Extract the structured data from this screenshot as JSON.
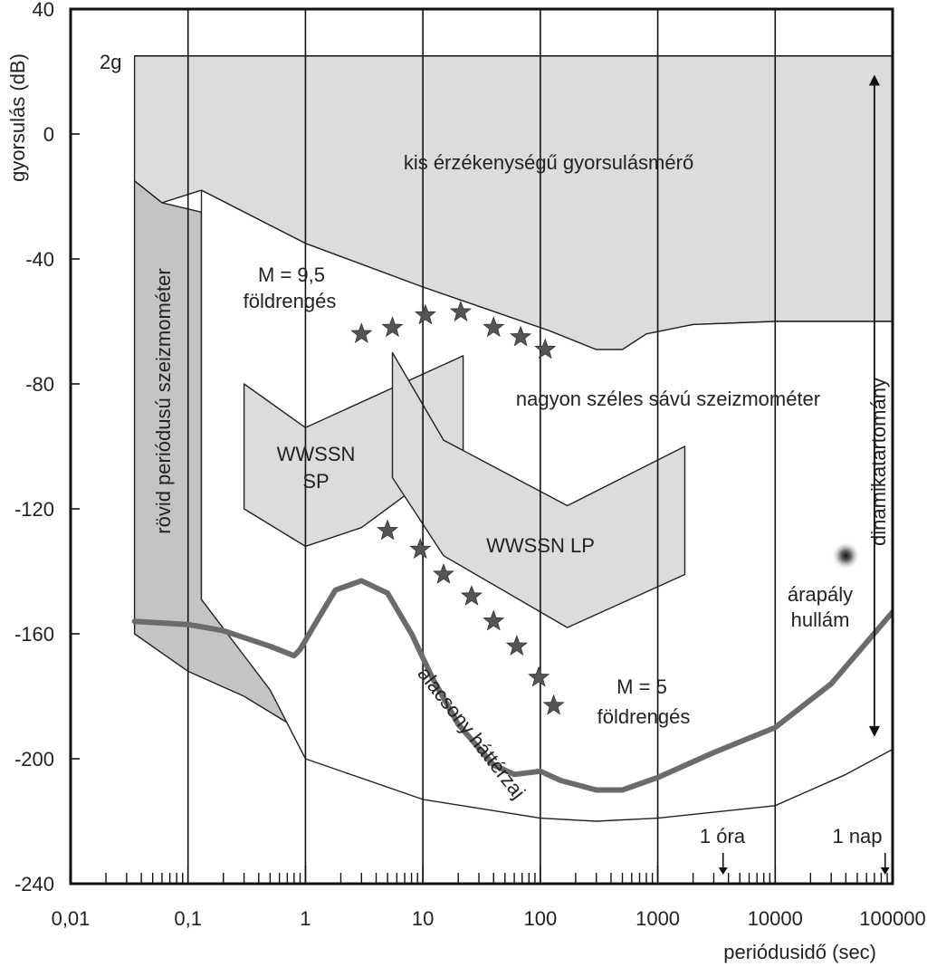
{
  "chart_data": {
    "type": "area",
    "title": "",
    "xlabel": "periódusidő (sec)",
    "ylabel": "gyorsulás (dB)",
    "x_scale": "log",
    "xlim": [
      0.01,
      100000
    ],
    "ylim": [
      -240,
      40
    ],
    "grid": "vertical lines at each decade",
    "x_ticks": [
      {
        "value": 0.01,
        "label": "0,01"
      },
      {
        "value": 0.1,
        "label": "0,1"
      },
      {
        "value": 1,
        "label": "1"
      },
      {
        "value": 10,
        "label": "10"
      },
      {
        "value": 100,
        "label": "100"
      },
      {
        "value": 1000,
        "label": "1000"
      },
      {
        "value": 10000,
        "label": "10000"
      },
      {
        "value": 100000,
        "label": "100000"
      }
    ],
    "y_ticks": [
      {
        "value": 40,
        "label": "40"
      },
      {
        "value": 0,
        "label": "0"
      },
      {
        "value": -40,
        "label": "-40"
      },
      {
        "value": -80,
        "label": "-80"
      },
      {
        "value": -120,
        "label": "-120"
      },
      {
        "value": -160,
        "label": "-160"
      },
      {
        "value": -200,
        "label": "-200"
      },
      {
        "value": -240,
        "label": "-240"
      }
    ],
    "regions": [
      {
        "key": "strong_motion",
        "name": "kis érzékenységű gyorsulásmérő",
        "fill": "#dcdcdc",
        "points": [
          [
            0.035,
            25
          ],
          [
            100000,
            25
          ],
          [
            100000,
            -60
          ],
          [
            10000,
            -60
          ],
          [
            2000,
            -61
          ],
          [
            800,
            -64
          ],
          [
            500,
            -69
          ],
          [
            300,
            -69
          ],
          [
            120,
            -63
          ],
          [
            10,
            -49
          ],
          [
            1,
            -35
          ],
          [
            0.13,
            -18
          ],
          [
            0.06,
            -22
          ],
          [
            0.035,
            -15
          ]
        ]
      },
      {
        "key": "short_period",
        "name": "rövid periódusú szeizmométer",
        "fill": "#c4c4c4",
        "points": [
          [
            0.035,
            -15
          ],
          [
            0.06,
            -22
          ],
          [
            0.13,
            -25
          ],
          [
            0.13,
            -149
          ],
          [
            0.5,
            -172
          ],
          [
            1.5,
            -193
          ],
          [
            3,
            -195
          ],
          [
            1,
            -192
          ],
          [
            0.3,
            -180
          ],
          [
            0.1,
            -172
          ],
          [
            0.035,
            -160
          ]
        ]
      },
      {
        "key": "broadband",
        "name": "nagyon széles sávú szeizmométer",
        "fill": "#ffffff",
        "points": [
          [
            0.13,
            -18
          ],
          [
            1,
            -35
          ],
          [
            10,
            -49
          ],
          [
            120,
            -63
          ],
          [
            300,
            -69
          ],
          [
            500,
            -69
          ],
          [
            800,
            -64
          ],
          [
            2000,
            -61
          ],
          [
            10000,
            -60
          ],
          [
            100000,
            -60
          ],
          [
            100000,
            -197
          ],
          [
            40000,
            -205
          ],
          [
            10000,
            -215
          ],
          [
            1000,
            -219
          ],
          [
            300,
            -220
          ],
          [
            100,
            -219
          ],
          [
            10,
            -213
          ],
          [
            1,
            -200
          ],
          [
            0.5,
            -178
          ],
          [
            0.13,
            -149
          ]
        ]
      },
      {
        "key": "wwssn_sp",
        "name": "WWSSN SP",
        "fill": "#dcdcdc",
        "points": [
          [
            0.3,
            -80
          ],
          [
            1,
            -94
          ],
          [
            22,
            -71
          ],
          [
            22,
            -102
          ],
          [
            3,
            -126
          ],
          [
            1,
            -132
          ],
          [
            0.3,
            -120
          ]
        ]
      },
      {
        "key": "wwssn_lp",
        "name": "WWSSN LP",
        "fill": "#dcdcdc",
        "points": [
          [
            5.5,
            -70
          ],
          [
            15,
            -98
          ],
          [
            170,
            -119
          ],
          [
            1700,
            -100
          ],
          [
            1700,
            -141
          ],
          [
            170,
            -158
          ],
          [
            15,
            -135
          ],
          [
            5.5,
            -110
          ]
        ]
      }
    ],
    "series": [
      {
        "key": "noise",
        "name": "alacsony háttérzaj",
        "color": "#6b6b6b",
        "x": [
          0.035,
          0.1,
          0.2,
          0.5,
          0.8,
          0.9,
          1.2,
          1.8,
          3,
          5,
          8,
          12,
          20,
          40,
          60,
          100,
          150,
          300,
          500,
          1000,
          3000,
          10000,
          30000,
          100000
        ],
        "y": [
          -156,
          -157,
          -159,
          -164,
          -167,
          -165,
          -157,
          -146,
          -143,
          -147,
          -160,
          -174,
          -189,
          -202,
          -205,
          -204,
          -207,
          -210,
          -210,
          -206,
          -198,
          -190,
          -176,
          -153
        ]
      }
    ],
    "markers": [
      {
        "key": "m95",
        "name": "M = 9,5 földrengés",
        "symbol": "star",
        "color": "#555555",
        "x": [
          3,
          5.5,
          10.5,
          21,
          40,
          68,
          110
        ],
        "y": [
          -64,
          -62,
          -58,
          -57,
          -62,
          -65,
          -69
        ]
      },
      {
        "key": "m5",
        "name": "M = 5 földrengés",
        "symbol": "star",
        "color": "#555555",
        "x": [
          5,
          9.5,
          15,
          26,
          40,
          63,
          97,
          130
        ],
        "y": [
          -127,
          -133,
          -141,
          -148,
          -156,
          -164,
          -174,
          -183
        ]
      }
    ],
    "point_markers": [
      {
        "key": "tide",
        "name": "árapály hullám",
        "x": 40000,
        "y": -135,
        "color": "#444444"
      }
    ],
    "ranges": [
      {
        "key": "dynamic",
        "name": "dinamikatartomány",
        "x": 70000,
        "y_from": 19,
        "y_to": -193
      }
    ],
    "annotations": [
      {
        "key": "ref2g",
        "text": "2g",
        "y": 25
      },
      {
        "key": "hour",
        "text": "1 óra",
        "x": 3600,
        "y": -228
      },
      {
        "key": "day",
        "text": "1 nap",
        "x": 86400,
        "y": -228
      }
    ],
    "labels": {
      "strong_motion": "kis érzékenységű gyorsulásmérő",
      "short_period": "rövid periódusú szeizmométer",
      "broadband": "nagyon széles sávú szeizmométer",
      "wwssn_sp_1": "WWSSN",
      "wwssn_sp_2": "SP",
      "wwssn_lp": "WWSSN LP",
      "m95_1": "M = 9,5",
      "m95_2": "földrengés",
      "m5_1": "M = 5",
      "m5_2": "földrengés",
      "tide_1": "árapály",
      "tide_2": "hullám",
      "noise": "alacsony háttérzaj",
      "dynamic": "dinamikatartomány",
      "ref2g": "2g",
      "hour": "1 óra",
      "day": "1 nap"
    }
  }
}
